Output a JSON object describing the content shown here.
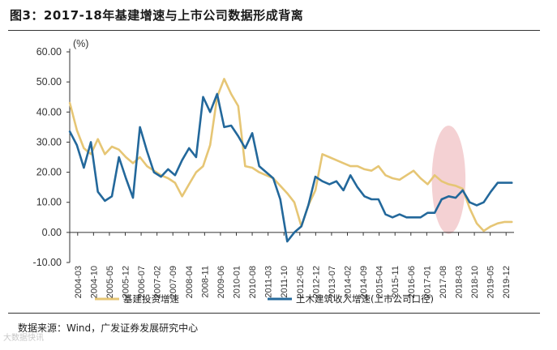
{
  "header": {
    "title": "图3：2017-18年基建增速与上市公司数据形成背离"
  },
  "footer": {
    "source": "数据来源：Wind，广发证券发展研究中心",
    "watermark": "大数据快讯"
  },
  "colors": {
    "series_infra": "#E6C675",
    "series_civil": "#23689B",
    "highlight": "#F2C9CB",
    "axis": "#333333"
  },
  "chart_data": {
    "type": "line",
    "ylabel": "(%)",
    "ylim": [
      -10,
      60
    ],
    "yticks": [
      "60.00",
      "50.00",
      "40.00",
      "30.00",
      "20.00",
      "10.00",
      "0.00",
      "-10.00"
    ],
    "ytick_values": [
      60,
      50,
      40,
      30,
      20,
      10,
      0,
      -10
    ],
    "xlim": [
      2004.1667,
      2020.0
    ],
    "xticks": [
      "2004-03",
      "2004-10",
      "2005-05",
      "2005-12",
      "2006-07",
      "2007-02",
      "2007-09",
      "2008-04",
      "2008-11",
      "2009-06",
      "2010-01",
      "2010-08",
      "2011-03",
      "2011-10",
      "2012-05",
      "2012-12",
      "2013-07",
      "2014-02",
      "2014-09",
      "2015-04",
      "2015-11",
      "2016-06",
      "2017-01",
      "2017-08",
      "2018-03",
      "2018-10",
      "2019-05",
      "2019-12"
    ],
    "highlight": {
      "label": "",
      "x_center": 2017.67,
      "x_halfwidth": 0.6,
      "y_center": 17.5,
      "y_halfwidth": 18
    },
    "legend": "bottom",
    "series": [
      {
        "name": "基建投资增速",
        "x": [
          2004.17,
          2004.42,
          2004.67,
          2004.92,
          2005.17,
          2005.42,
          2005.67,
          2005.92,
          2006.17,
          2006.42,
          2006.67,
          2006.92,
          2007.17,
          2007.42,
          2007.67,
          2007.92,
          2008.17,
          2008.42,
          2008.67,
          2008.92,
          2009.17,
          2009.42,
          2009.67,
          2009.92,
          2010.17,
          2010.42,
          2010.67,
          2010.92,
          2011.17,
          2011.42,
          2011.67,
          2011.92,
          2012.17,
          2012.42,
          2012.67,
          2012.92,
          2013.17,
          2013.42,
          2013.67,
          2013.92,
          2014.17,
          2014.42,
          2014.67,
          2014.92,
          2015.17,
          2015.42,
          2015.67,
          2015.92,
          2016.17,
          2016.42,
          2016.67,
          2016.92,
          2017.17,
          2017.42,
          2017.67,
          2017.92,
          2018.17,
          2018.42,
          2018.67,
          2018.92,
          2019.17,
          2019.42,
          2019.67,
          2019.92
        ],
        "values": [
          43,
          34,
          28,
          26,
          31,
          26,
          28.5,
          27.5,
          25,
          23,
          25,
          22,
          20.5,
          19,
          18,
          16.5,
          12,
          16,
          20,
          22,
          29,
          45,
          51,
          46,
          42,
          22,
          21.5,
          20,
          19,
          18,
          15.5,
          13,
          10,
          2,
          9,
          14,
          26,
          25,
          24,
          23,
          22,
          22,
          21,
          20.5,
          22,
          19,
          18,
          17.5,
          19,
          20.5,
          18,
          16,
          19,
          17,
          16,
          15.5,
          14.5,
          8,
          3,
          0.5,
          2,
          3,
          3.5,
          3.5
        ]
      },
      {
        "name": "土木建筑收入增速(上市公司口径)",
        "x": [
          2004.17,
          2004.42,
          2004.67,
          2004.92,
          2005.17,
          2005.42,
          2005.67,
          2005.92,
          2006.17,
          2006.42,
          2006.67,
          2006.92,
          2007.17,
          2007.42,
          2007.67,
          2007.92,
          2008.17,
          2008.42,
          2008.67,
          2008.92,
          2009.17,
          2009.42,
          2009.67,
          2009.92,
          2010.17,
          2010.42,
          2010.67,
          2010.92,
          2011.17,
          2011.42,
          2011.67,
          2011.92,
          2012.17,
          2012.42,
          2012.67,
          2012.92,
          2013.17,
          2013.42,
          2013.67,
          2013.92,
          2014.17,
          2014.42,
          2014.67,
          2014.92,
          2015.17,
          2015.42,
          2015.67,
          2015.92,
          2016.17,
          2016.42,
          2016.67,
          2016.92,
          2017.17,
          2017.42,
          2017.67,
          2017.92,
          2018.17,
          2018.42,
          2018.67,
          2018.92,
          2019.17,
          2019.42,
          2019.67,
          2019.92
        ],
        "values": [
          33.5,
          29,
          21.5,
          30,
          13.5,
          10.5,
          12,
          25,
          18,
          11.5,
          35,
          27,
          20,
          18.5,
          21,
          19,
          24,
          28,
          25,
          45,
          40,
          46,
          35,
          35.5,
          32,
          28,
          33,
          22,
          20,
          18,
          11,
          -3,
          0,
          2,
          9,
          18.5,
          17,
          16,
          17,
          14,
          19,
          15,
          12,
          11,
          11,
          6,
          5,
          6,
          5,
          5,
          5,
          6.5,
          6.5,
          11,
          12,
          11.5,
          14,
          10,
          9,
          10,
          13.5,
          16.5,
          16.5,
          16.5
        ]
      }
    ]
  }
}
